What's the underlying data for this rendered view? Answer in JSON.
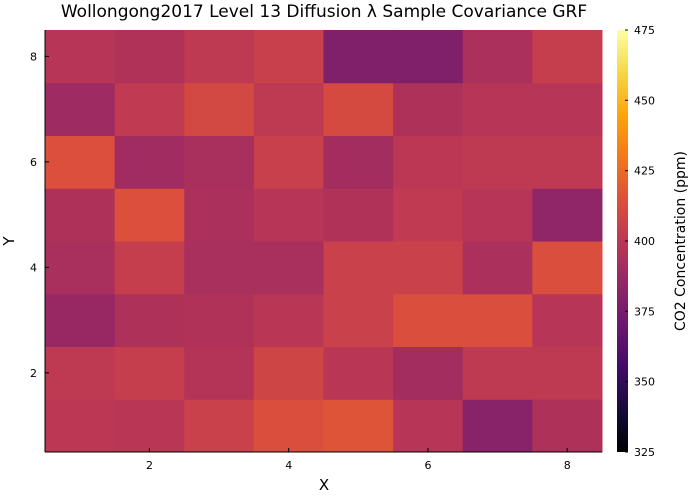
{
  "chart_data": {
    "type": "heatmap",
    "title": "Wollongong2017 Level 13 Diffusion λ Sample Covariance GRF",
    "xlabel": "X",
    "ylabel": "Y",
    "x": [
      1,
      2,
      3,
      4,
      5,
      6,
      7,
      8
    ],
    "y": [
      1,
      2,
      3,
      4,
      5,
      6,
      7,
      8
    ],
    "xlim": [
      0.5,
      8.5
    ],
    "ylim": [
      0.5,
      8.5
    ],
    "xticks": [
      2,
      4,
      6,
      8
    ],
    "yticks": [
      2,
      4,
      6,
      8
    ],
    "xtick_labels": [
      "2",
      "4",
      "6",
      "8"
    ],
    "ytick_labels": [
      "2",
      "4",
      "6",
      "8"
    ],
    "colormap": "inferno",
    "colorbar": {
      "label": "CO2 Concentration (ppm)",
      "range": [
        325,
        475
      ],
      "ticks": [
        325,
        350,
        375,
        400,
        425,
        450,
        475
      ],
      "tick_labels": [
        "325",
        "350",
        "375",
        "400",
        "425",
        "450",
        "475"
      ]
    },
    "z_rows_bottom_to_top": [
      [
        400,
        399,
        406,
        413,
        416,
        398,
        381,
        395
      ],
      [
        401,
        404,
        397,
        408,
        399,
        391,
        401,
        401
      ],
      [
        387,
        395,
        396,
        399,
        406,
        413,
        413,
        398
      ],
      [
        393,
        404,
        393,
        393,
        406,
        406,
        394,
        413
      ],
      [
        395,
        414,
        394,
        398,
        396,
        402,
        398,
        384
      ],
      [
        414,
        390,
        393,
        405,
        391,
        400,
        401,
        401
      ],
      [
        389,
        402,
        410,
        401,
        411,
        395,
        398,
        398
      ],
      [
        398,
        396,
        401,
        405,
        378,
        378,
        394,
        404
      ]
    ]
  }
}
